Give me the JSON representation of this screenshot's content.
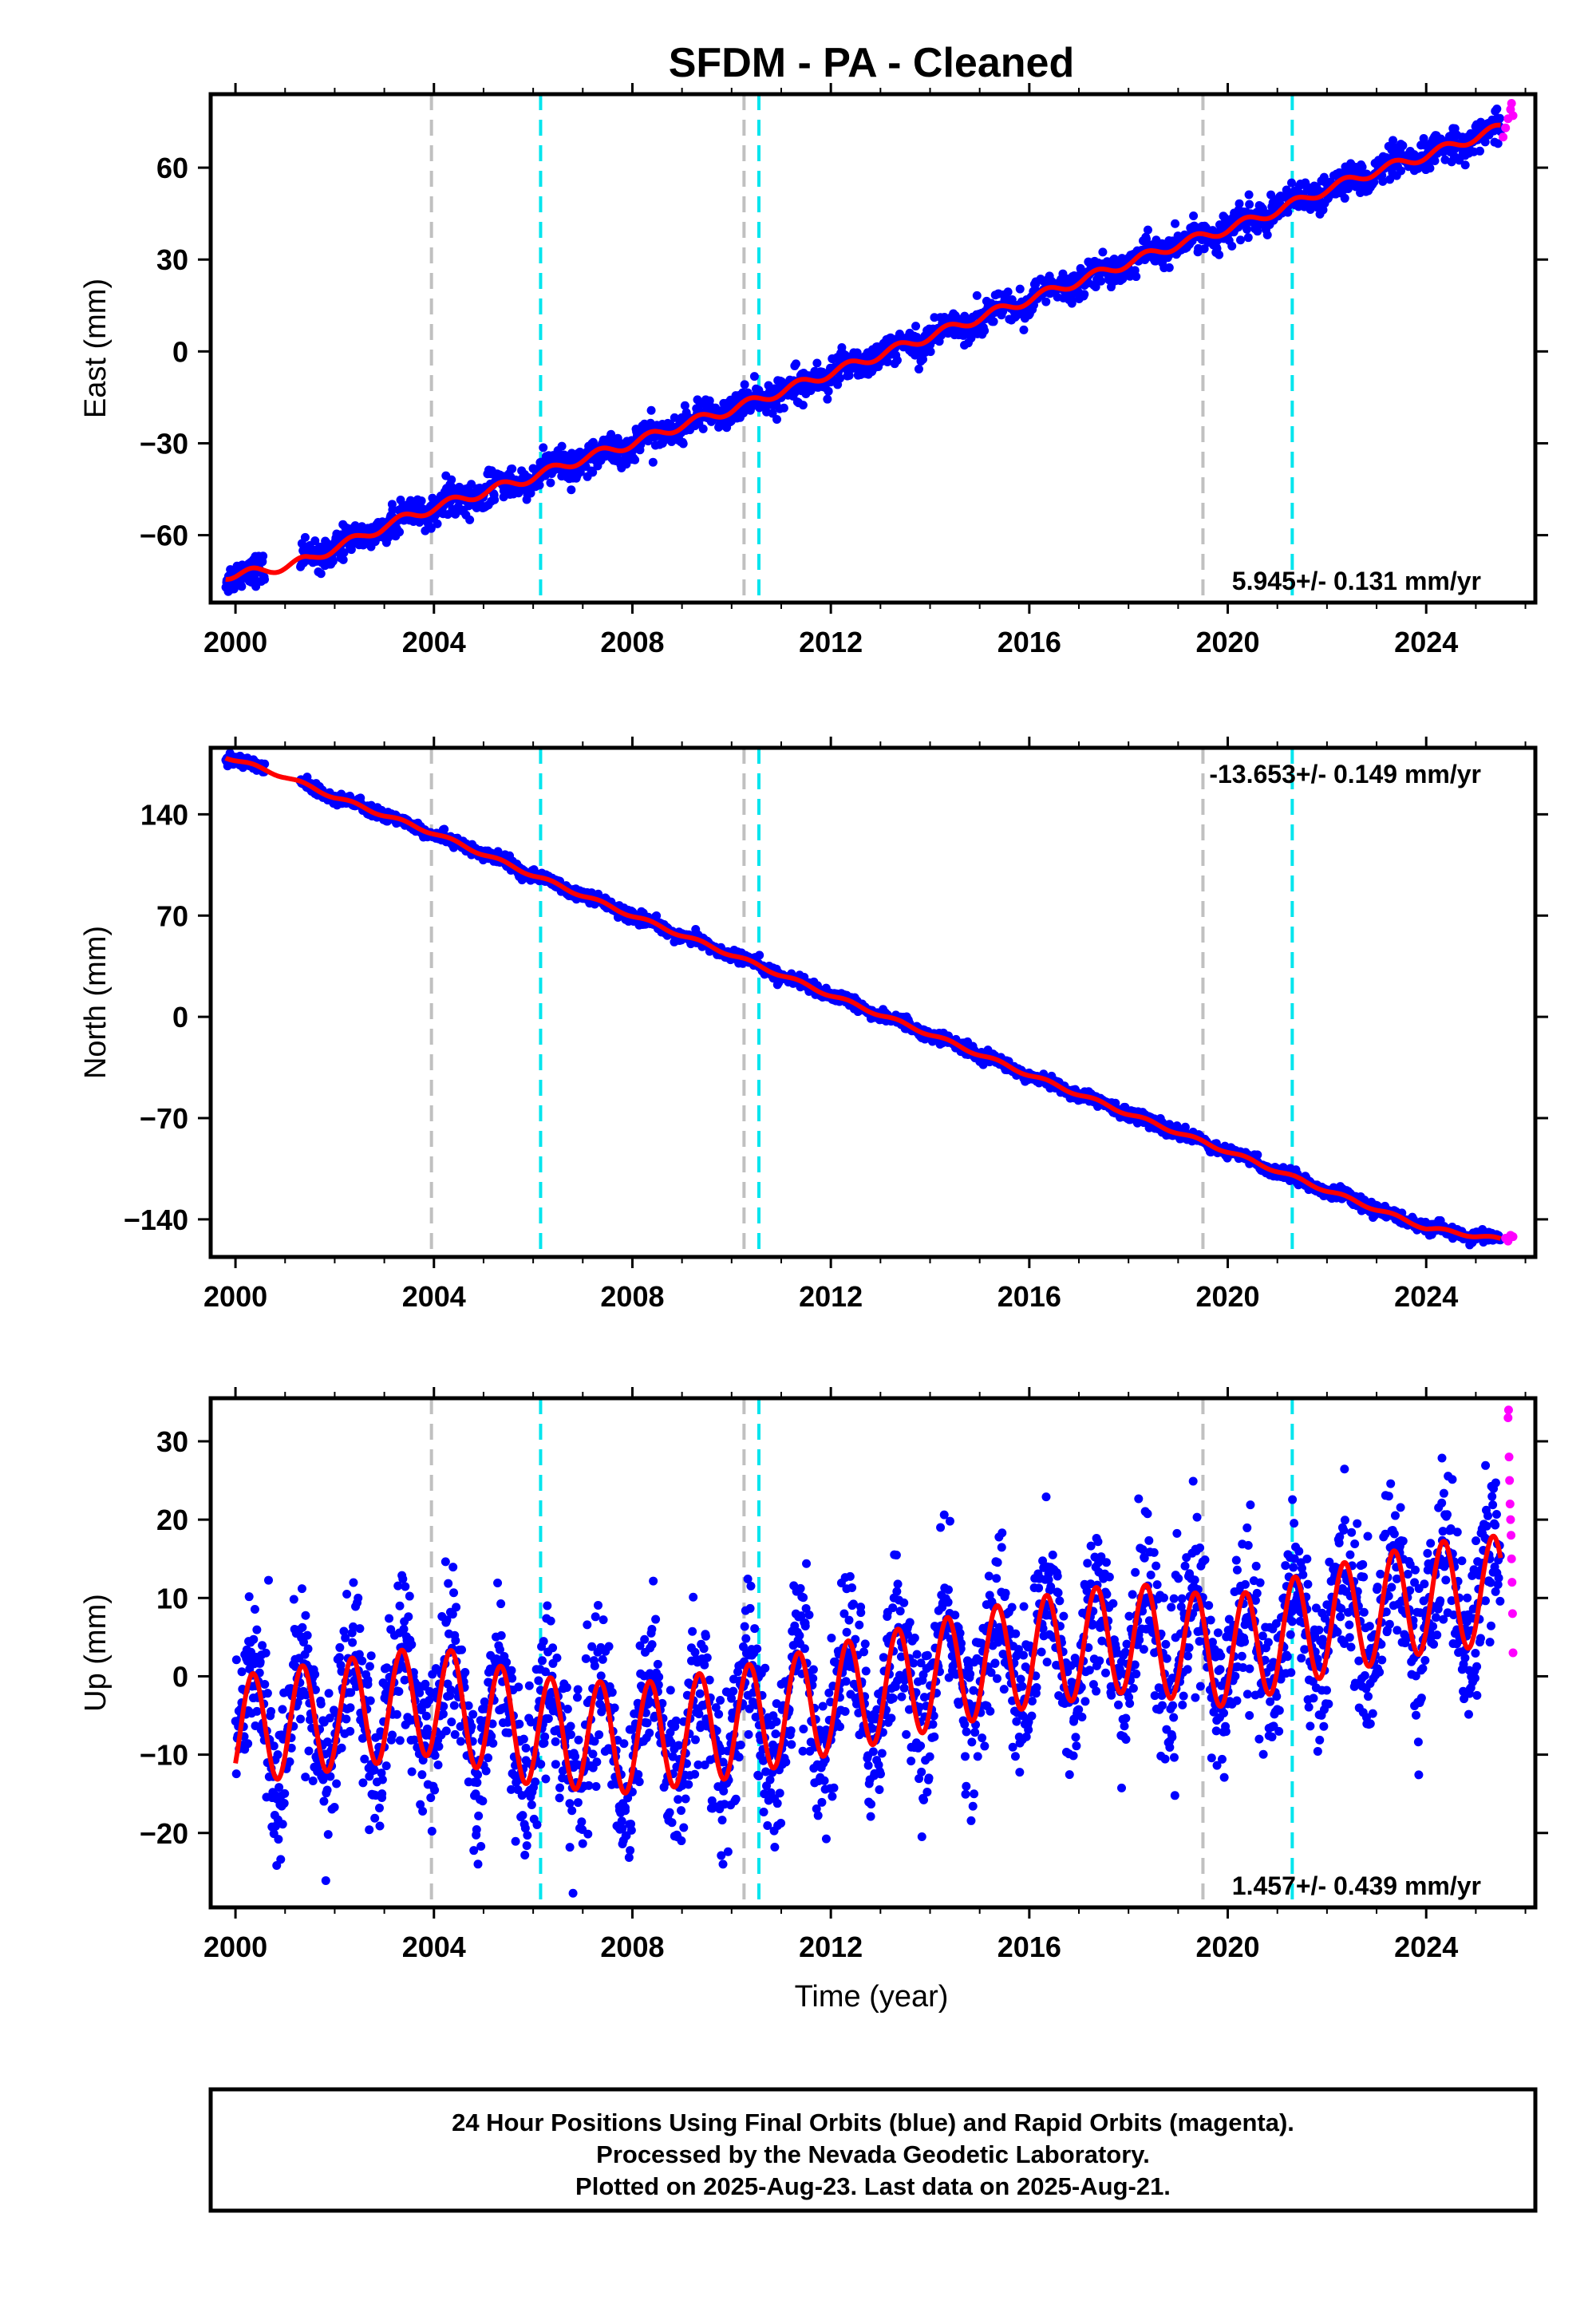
{
  "title": "SFDM  - PA - Cleaned",
  "colors": {
    "final_orbits": "#0000ff",
    "rapid_orbits": "#ff00ff",
    "model": "#ff0000",
    "event_gray": "#c0c0c0",
    "event_cyan": "#00e5ee"
  },
  "x_axis": {
    "label": "Time (year)",
    "range": [
      1999.5,
      2026.2
    ],
    "ticks": [
      2000,
      2004,
      2008,
      2012,
      2016,
      2020,
      2024
    ]
  },
  "events": {
    "gray_lines": [
      2003.95,
      2010.25,
      2019.5
    ],
    "cyan_lines": [
      2006.15,
      2010.55,
      2021.3
    ]
  },
  "footer": {
    "line1": "24 Hour Positions Using Final Orbits (blue) and Rapid Orbits (magenta).",
    "line2": "Processed by the Nevada Geodetic Laboratory.",
    "line3": "Plotted on 2025-Aug-23. Last data on 2025-Aug-21."
  },
  "chart_data": [
    {
      "type": "scatter",
      "id": "east",
      "ylabel": "East (mm)",
      "ylim": [
        -82,
        84
      ],
      "yticks": [
        -60,
        -30,
        0,
        30,
        60
      ],
      "rate_text": "5.945+/- 0.131 mm/yr",
      "rate_position": "bottom-right",
      "trend": {
        "rate": 5.945,
        "value_at_2012": -7
      },
      "series": [
        {
          "name": "Final Orbits (blue)",
          "x": [
            1999.8,
            2000.5,
            2001.0,
            2001.5,
            2002.0,
            2002.5,
            2003.0,
            2004.0,
            2005.0,
            2006.0,
            2007.0,
            2008.0,
            2009.0,
            2010.0,
            2011.0,
            2012.0,
            2013.0,
            2014.0,
            2015.0,
            2016.0,
            2017.0,
            2018.0,
            2019.0,
            2020.0,
            2021.0,
            2022.0,
            2023.0,
            2024.0,
            2025.0,
            2025.5
          ],
          "y": [
            -73,
            -72,
            -70,
            -68,
            -64,
            -61,
            -57,
            -51,
            -46,
            -41,
            -35,
            -30,
            -24,
            -19,
            -13,
            -7,
            -1,
            5,
            11,
            17,
            23,
            29,
            35,
            40,
            46,
            53,
            59,
            64,
            70,
            73
          ],
          "scatter_mm": 2.5
        },
        {
          "name": "Rapid Orbits (magenta)",
          "x": [
            2025.55,
            2025.6,
            2025.65,
            2025.7,
            2025.72,
            2025.75
          ],
          "y": [
            70,
            73,
            76,
            79,
            81,
            77
          ]
        }
      ],
      "model": {
        "annual_amplitude_mm": 1.5
      }
    },
    {
      "type": "scatter",
      "id": "north",
      "ylabel": "North (mm)",
      "ylim": [
        -166,
        186
      ],
      "yticks": [
        -140,
        -70,
        0,
        70,
        140
      ],
      "rate_text": "-13.653+/- 0.149 mm/yr",
      "rate_position": "top-right",
      "trend": {
        "rate": -13.653,
        "value_at_2012": 18
      },
      "series": [
        {
          "name": "Final Orbits (blue)",
          "x": [
            1999.8,
            2001.0,
            2002.0,
            2004.0,
            2006.0,
            2008.0,
            2010.0,
            2012.0,
            2014.0,
            2016.0,
            2018.0,
            2020.0,
            2022.0,
            2024.0,
            2025.5
          ],
          "y": [
            180,
            166,
            152,
            127,
            98,
            70,
            43,
            15,
            -12,
            -40,
            -67,
            -93,
            -120,
            -146,
            -154
          ],
          "scatter_mm": 2
        },
        {
          "name": "Rapid Orbits (magenta)",
          "x": [
            2025.6,
            2025.65,
            2025.7,
            2025.75
          ],
          "y": [
            -153,
            -155,
            -151,
            -152
          ]
        }
      ],
      "model": {
        "annual_amplitude_mm": 1.2
      }
    },
    {
      "type": "scatter",
      "id": "up",
      "ylabel": "Up (mm)",
      "ylim": [
        -29.5,
        35.5
      ],
      "yticks": [
        -20,
        -10,
        0,
        10,
        20,
        30
      ],
      "rate_text": "1.457+/- 0.439 mm/yr",
      "rate_position": "bottom-right",
      "trend": {
        "rate": 1.457,
        "value_at_2012": -3
      },
      "series": [
        {
          "name": "Final Orbits (blue)",
          "x": [
            2000.0,
            2002.0,
            2004.0,
            2006.0,
            2008.0,
            2010.0,
            2012.0,
            2014.0,
            2016.0,
            2018.0,
            2020.0,
            2022.0,
            2024.0,
            2025.5
          ],
          "y": [
            -7,
            -5,
            -3,
            -7,
            -8,
            -6,
            -3,
            0,
            3,
            5,
            3,
            7,
            10,
            11
          ],
          "scatter_mm": 5
        },
        {
          "name": "Rapid Orbits (magenta)",
          "x": [
            2025.65,
            2025.66,
            2025.67,
            2025.68,
            2025.69,
            2025.7,
            2025.71,
            2025.72,
            2025.73,
            2025.74,
            2025.75
          ],
          "y": [
            33,
            34,
            28,
            25,
            22,
            20,
            18,
            15,
            12,
            8,
            3
          ]
        }
      ],
      "model": {
        "annual_amplitude_mm": 7
      }
    }
  ]
}
